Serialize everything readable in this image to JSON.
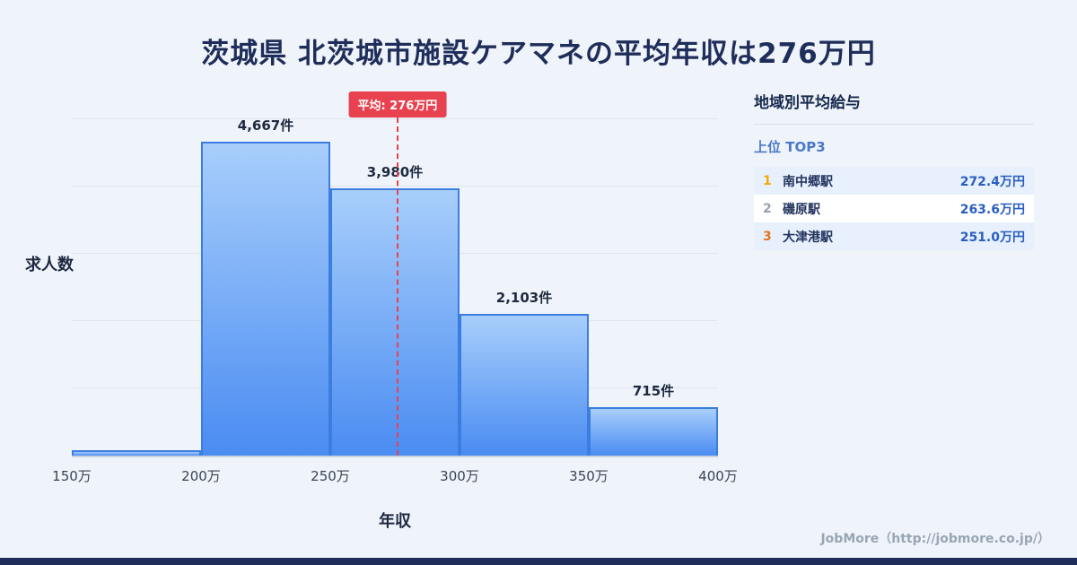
{
  "title": "茨城県 北茨城市施設ケアマネの平均年収は276万円",
  "chart_data": {
    "type": "bar",
    "categories": [
      "150万-200万",
      "200万-250万",
      "250万-300万",
      "300万-350万",
      "350万-400万"
    ],
    "values": [
      80,
      4667,
      3980,
      2103,
      715
    ],
    "bar_labels": [
      "",
      "4,667件",
      "3,980件",
      "2,103件",
      "715件"
    ],
    "x_tick_labels": [
      "150万",
      "200万",
      "250万",
      "300万",
      "350万",
      "400万"
    ],
    "x_range": [
      150,
      400
    ],
    "ylabel": "求人数",
    "xlabel": "年収",
    "ylim": [
      0,
      5000
    ],
    "grid": true,
    "average_line": {
      "value": 276,
      "label": "平均: 276万円"
    }
  },
  "sidebar": {
    "title": "地域別平均給与",
    "subtitle": "上位 TOP3",
    "rows": [
      {
        "rank": "1",
        "name": "南中郷駅",
        "value": "272.4万円"
      },
      {
        "rank": "2",
        "name": "磯原駅",
        "value": "263.6万円"
      },
      {
        "rank": "3",
        "name": "大津港駅",
        "value": "251.0万円"
      }
    ]
  },
  "footer": {
    "credit": "JobMore（http://jobmore.co.jp/）"
  },
  "colors": {
    "background": "#eff4fa",
    "title": "#1f2d5a",
    "bar-top": "#a8cefb",
    "bar-bottom": "#4a8cf2",
    "bar-border": "#3c7de0",
    "grid": "#dfe6ef",
    "accent-red": "#e8414f",
    "rank1": "#f2a900",
    "rank2": "#97a2b1",
    "rank3": "#e0761f",
    "value-blue": "#2a5fc0",
    "row-alt": "#e7f0fc",
    "subtitle-blue": "#4b79c8",
    "footer-gray": "#98a5b4",
    "bottom-bar": "#1f2d5a"
  }
}
